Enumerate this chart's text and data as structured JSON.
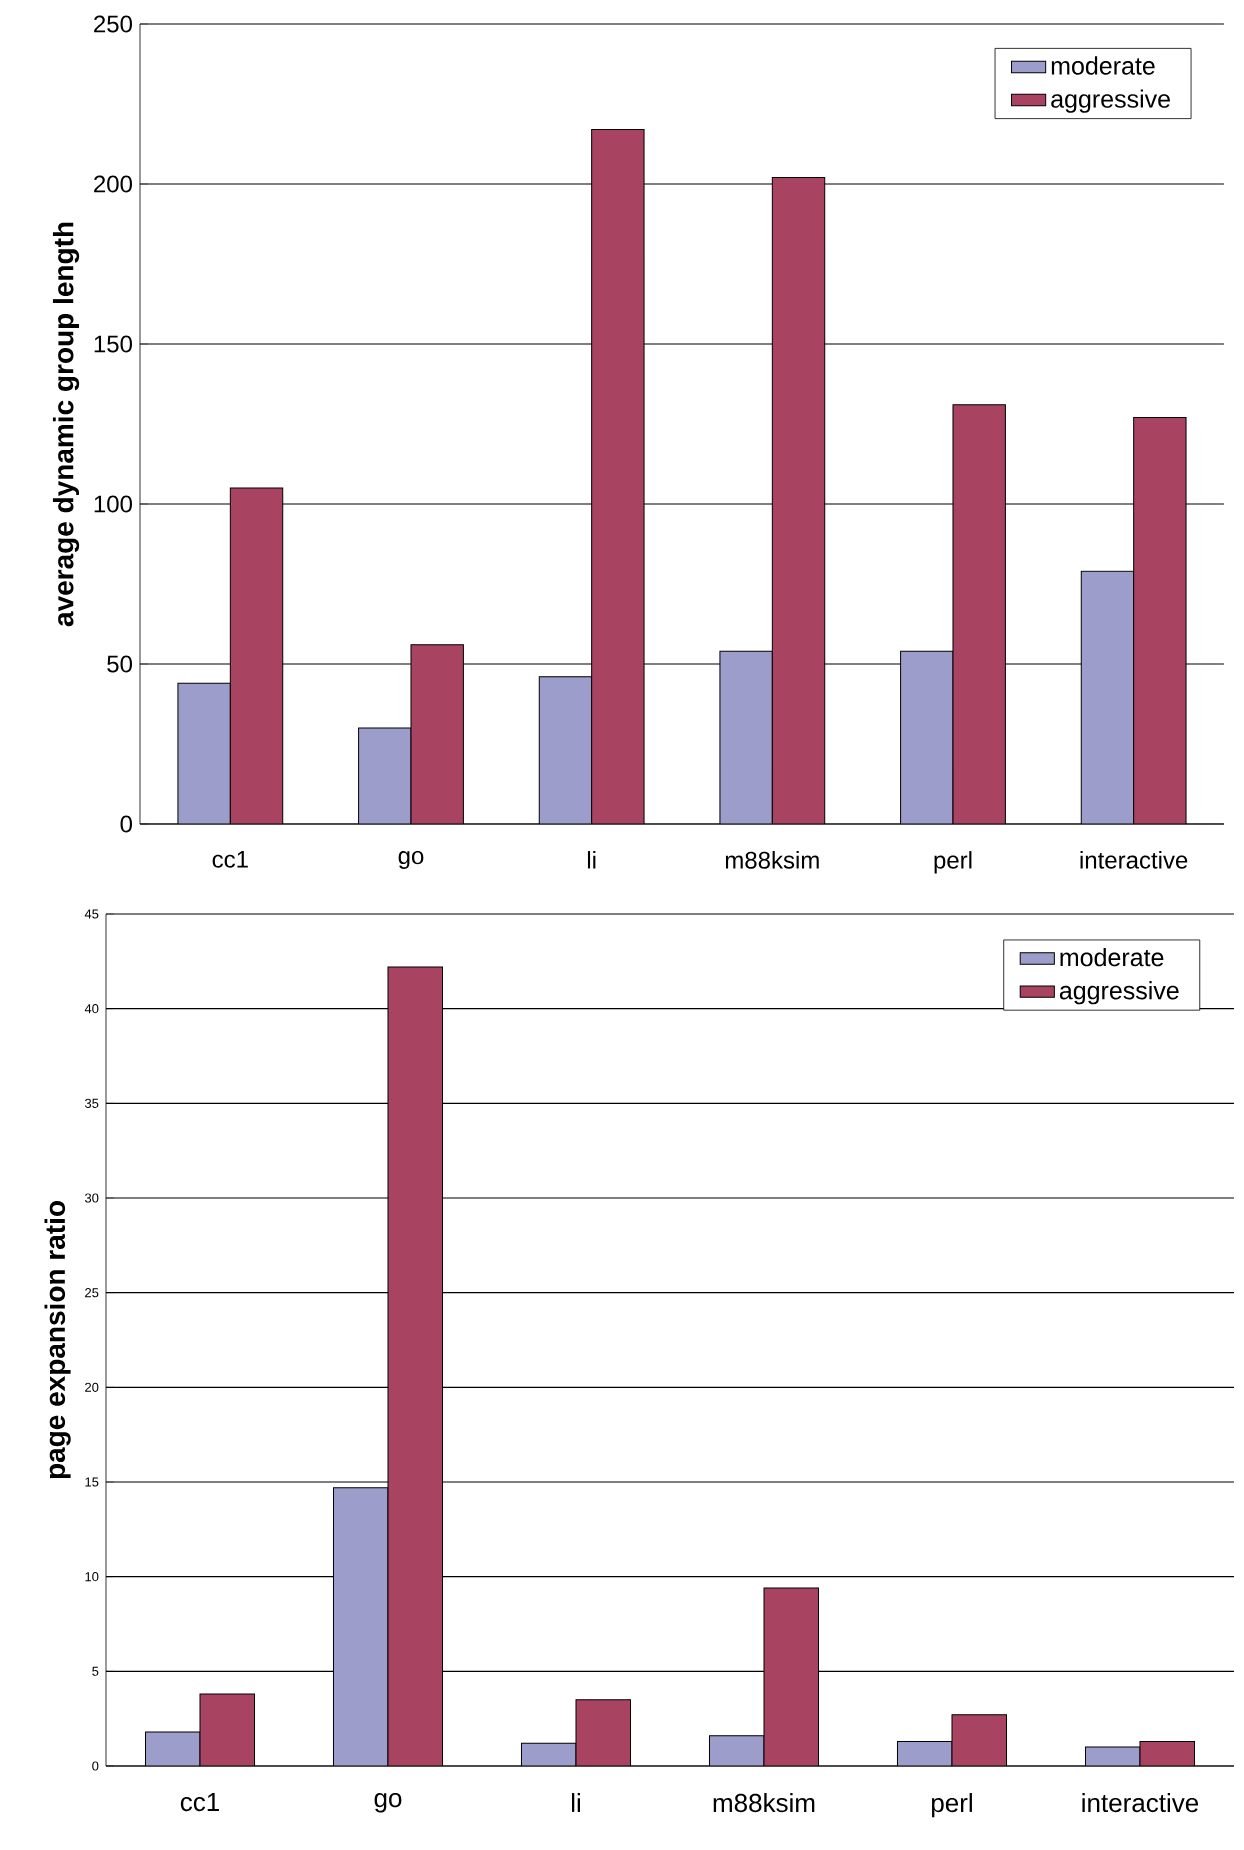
{
  "chart_data": [
    {
      "type": "bar",
      "ylabel": "average dynamic group length",
      "categories": [
        "cc1",
        "go",
        "li",
        "m88ksim",
        "perl",
        "interactive"
      ],
      "series": [
        {
          "name": "moderate",
          "color": "#9d9dcc",
          "values": [
            44,
            30,
            46,
            54,
            54,
            79
          ]
        },
        {
          "name": "aggressive",
          "color": "#a84462",
          "values": [
            105,
            56,
            217,
            202,
            131,
            127
          ]
        }
      ],
      "ylim": [
        0,
        250
      ],
      "yticks": [
        0,
        50,
        100,
        150,
        200,
        250
      ],
      "grid": "y",
      "legend": "top right"
    },
    {
      "type": "bar",
      "ylabel": "page expansion ratio",
      "categories": [
        "cc1",
        "go",
        "li",
        "m88ksim",
        "perl",
        "interactive"
      ],
      "series": [
        {
          "name": "moderate",
          "color": "#9d9dcc",
          "values": [
            1.8,
            14.7,
            1.2,
            1.6,
            1.3,
            1.0
          ]
        },
        {
          "name": "aggressive",
          "color": "#a84462",
          "values": [
            3.8,
            42.2,
            3.5,
            9.4,
            2.7,
            1.3
          ]
        }
      ],
      "ylim": [
        0,
        45
      ],
      "yticks": [
        0,
        5,
        10,
        15,
        20,
        25,
        30,
        35,
        40,
        45
      ],
      "grid": "y",
      "legend": "top right"
    }
  ]
}
